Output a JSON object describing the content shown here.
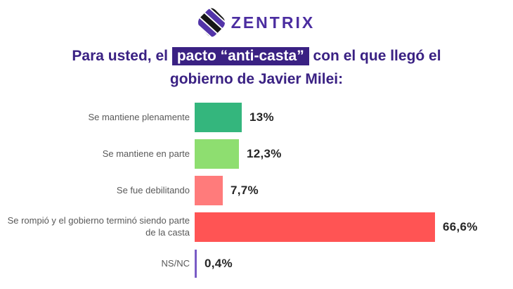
{
  "brand": {
    "name": "ZENTRIX",
    "logo_icon": "zentrix-diagonal-stripes-diamond",
    "wordmark_color": "#4b2da0",
    "icon_purple": "#5234a8",
    "icon_black": "#161616"
  },
  "title": {
    "pre": "Para usted, el ",
    "highlight": "pacto “anti-casta”",
    "post": " con el que llegó el gobierno de Javier Milei:",
    "text_color": "#3a2183",
    "highlight_bg": "#3a2183",
    "highlight_fg": "#ffffff"
  },
  "chart_data": {
    "type": "bar",
    "orientation": "horizontal",
    "title": "Para usted, el pacto “anti-casta” con el que llegó el gobierno de Javier Milei:",
    "categories": [
      "Se mantiene plenamente",
      "Se mantiene en parte",
      "Se fue debilitando",
      "Se rompió y el gobierno terminó siendo parte de la casta",
      "NS/NC"
    ],
    "values": [
      13,
      12.3,
      7.7,
      66.6,
      0.4
    ],
    "value_labels": [
      "13%",
      "12,3%",
      "7,7%",
      "66,6%",
      "0,4%"
    ],
    "bar_colors": [
      "#34b67d",
      "#8ede70",
      "#ff7b7b",
      "#ff5454",
      "#7a5cc6"
    ],
    "xlim": [
      0,
      70
    ],
    "grid": false,
    "legend": false,
    "label_color": "#595959",
    "value_color": "#262626"
  }
}
